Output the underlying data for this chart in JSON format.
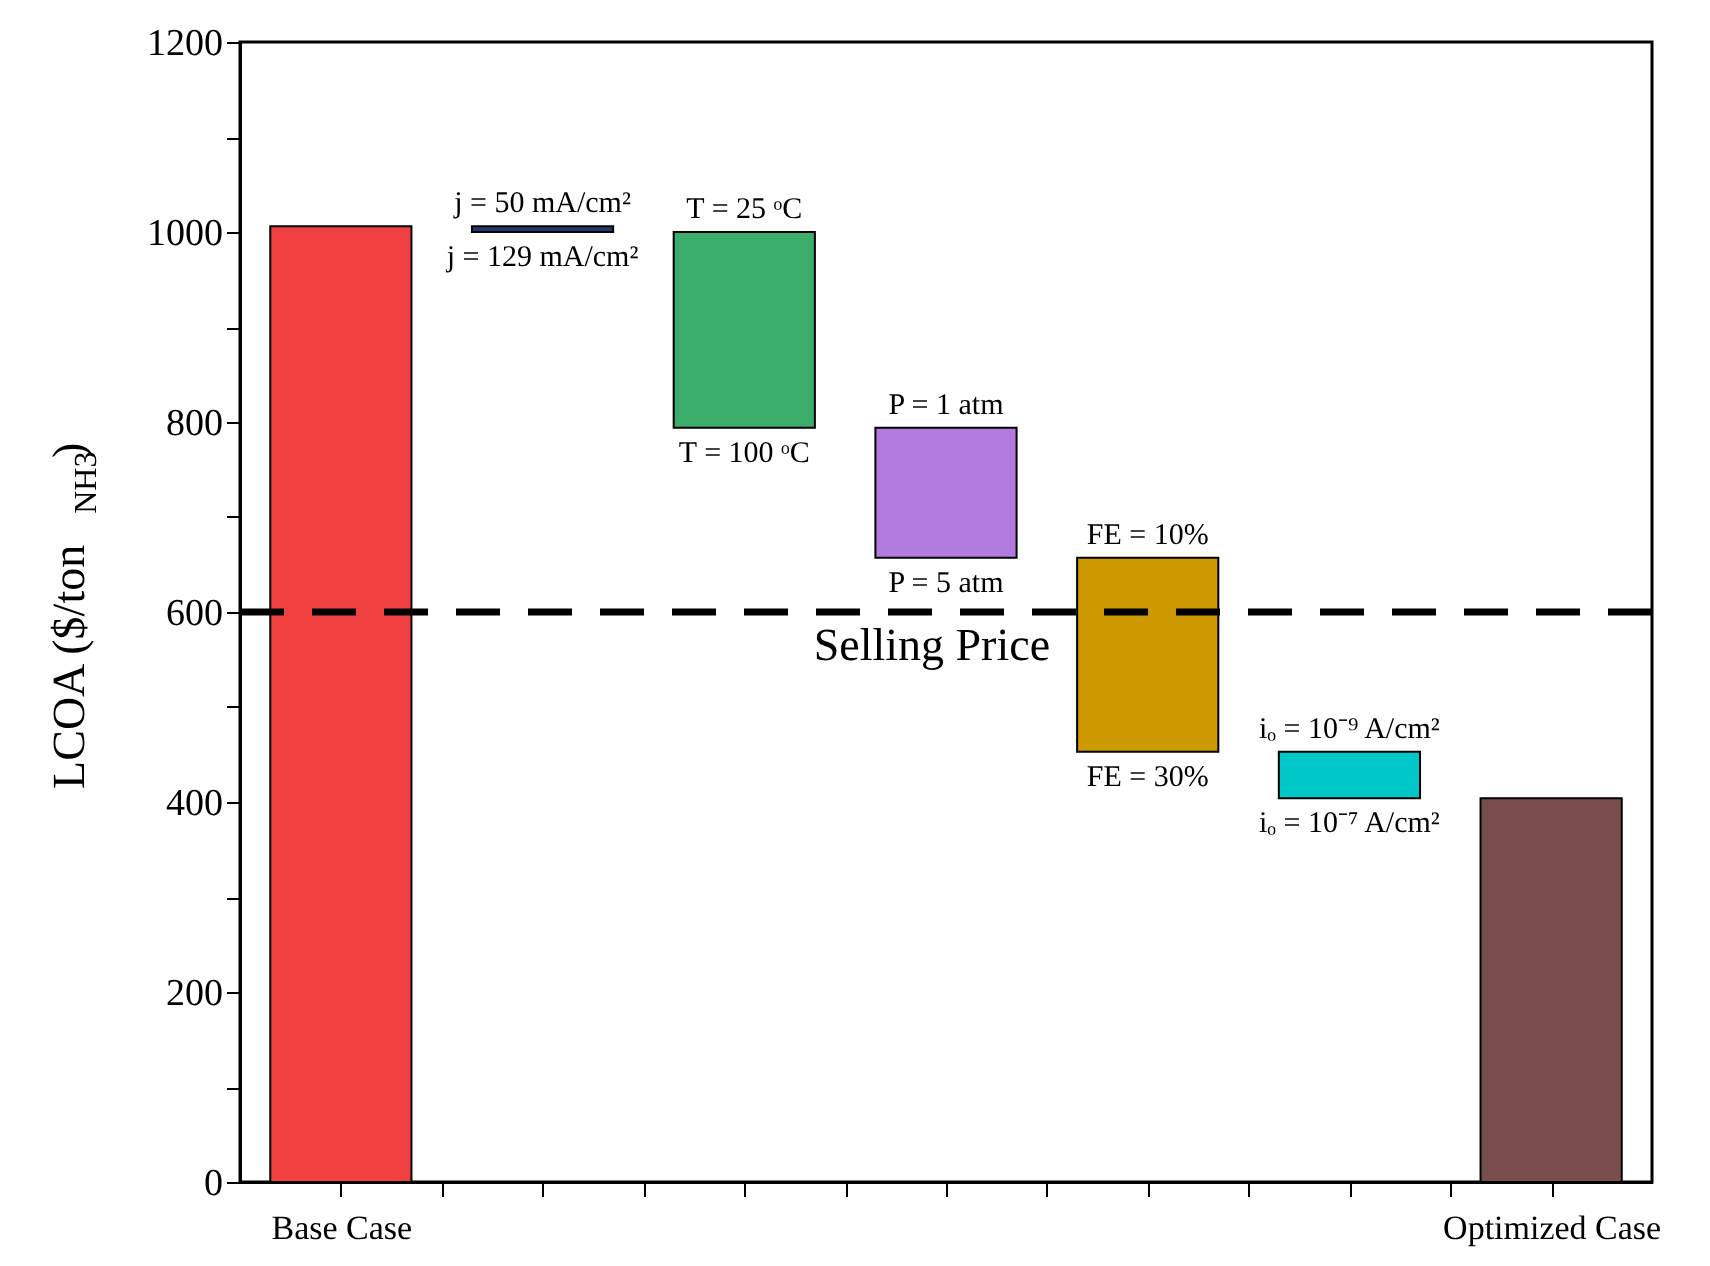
{
  "chart_data": {
    "type": "bar",
    "categories": [
      "Base Case",
      null,
      null,
      null,
      null,
      null,
      "Optimized Case"
    ],
    "base": [
      0,
      1006,
      1000,
      794,
      657,
      453,
      0
    ],
    "values": [
      1006,
      -6,
      -206,
      -137,
      -204,
      -49,
      404
    ],
    "colors": [
      "#f04040",
      "#1f3a6e",
      "#3aae6a",
      "#b07ade",
      "#cc9900",
      "#00c8c8",
      "#7b4e4e"
    ],
    "ylabel": "LCOA ($/ton$_{NH3}$)",
    "ylim": [
      0,
      1200
    ],
    "yticks": [
      0,
      {
        "value": 100,
        "label": null
      },
      200,
      {
        "value": 300,
        "label": null
      },
      400,
      {
        "value": 500,
        "label": null
      },
      600,
      {
        "value": 700,
        "label": null
      },
      800,
      {
        "value": 900,
        "label": null
      },
      1000,
      {
        "value": 1100,
        "label": null
      },
      1200
    ],
    "ref_lines": [
      {
        "axis": "y",
        "value": 600,
        "label": "Selling Price",
        "color": "#000000",
        "line_style": "dashed"
      }
    ],
    "annotations": [
      {
        "text": "j = 50 mA/cm²",
        "y": 1006
      },
      {
        "text": "j = 129 mA/cm²",
        "y": 1000
      },
      {
        "text": "T = 25 ᵒC",
        "y": 1000
      },
      {
        "text": "T = 100 ᵒC",
        "y": 794
      },
      {
        "text": "P = 1 atm",
        "y": 794
      },
      {
        "text": "P = 5 atm",
        "y": 657
      },
      {
        "text": "FE = 10%",
        "y": 657
      },
      {
        "text": "FE = 30%",
        "y": 453
      },
      {
        "text": "iₒ = 10⁻⁹ A/cm²",
        "y": 453
      },
      {
        "text": "iₒ = 10⁻⁷ A/cm²",
        "y": 404
      }
    ],
    "tick_labels": "xy",
    "grid": false
  }
}
